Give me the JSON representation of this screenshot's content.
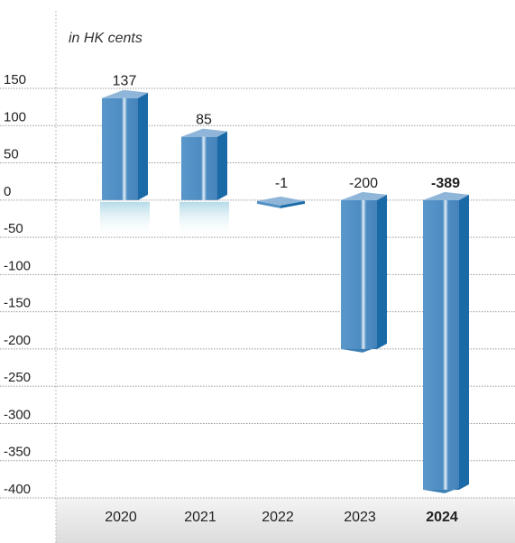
{
  "chart_data": {
    "type": "bar",
    "unit_label": "in HK cents",
    "categories": [
      "2020",
      "2021",
      "2022",
      "2023",
      "2024"
    ],
    "values": [
      137,
      85,
      -1,
      -200,
      -389
    ],
    "value_labels": [
      "137",
      "85",
      "-1",
      "-200",
      "-389"
    ],
    "highlight_index": 4,
    "ylim": [
      -400,
      150
    ],
    "yticks": [
      150,
      100,
      50,
      0,
      -50,
      -100,
      -150,
      -200,
      -250,
      -300,
      -350,
      -400
    ],
    "ytick_labels": [
      "150",
      "100",
      "50",
      "0",
      "-50",
      "-100",
      "-150",
      "-200",
      "-250",
      "-300",
      "-350",
      "-400"
    ],
    "grid": true,
    "colors": {
      "bar_front": "#4f8fc4",
      "bar_side": "#1b6aa8",
      "bar_top": "#8fb6d9",
      "bar_stripe": "#dbe9f5",
      "grid": "#9a9a9a",
      "footer": "#e6e6e6"
    }
  }
}
